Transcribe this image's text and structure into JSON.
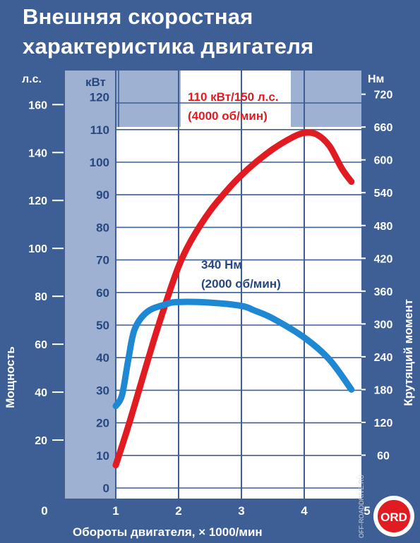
{
  "title": {
    "line1": "Внешняя скоростная",
    "line2": "характеристика двигателя"
  },
  "colors": {
    "background": "#3d5f95",
    "plot_area": "#ffffff",
    "shaded_band": "#9fb1d2",
    "power_curve": "#e11b22",
    "torque_curve": "#1e88d3",
    "label_dark": "#27477e"
  },
  "axes": {
    "left_hp_unit": "л.с.",
    "kw_unit": "кВт",
    "right_unit": "Нм",
    "left_title": "Мощность",
    "right_title": "Крутящий момент",
    "x_title": "Обороты двигателя, × 1000/мин"
  },
  "annotations": {
    "power_peak_line1": "110 кВт/150 л.с.",
    "power_peak_line2": "(4000 об/мин)",
    "torque_peak_line1": "340 Нм",
    "torque_peak_line2": "(2000 об/мин)"
  },
  "watermark": "OFF-ROADDRIVE.RU",
  "logo_text": "ORD",
  "chart_data": {
    "type": "line",
    "title": "Внешняя скоростная характеристика двигателя",
    "xlabel": "Обороты двигателя, × 1000/мин",
    "ylabel": "Мощность",
    "y2label": "Крутящий момент",
    "x_ticks": [
      "0",
      "1",
      "2",
      "3",
      "4",
      "5"
    ],
    "xlim": [
      0,
      5
    ],
    "hp_ticks": [
      "20",
      "40",
      "60",
      "80",
      "100",
      "120",
      "140",
      "160"
    ],
    "hp_lim": [
      0,
      160
    ],
    "kw_ticks": [
      "0",
      "10",
      "20",
      "30",
      "40",
      "50",
      "60",
      "70",
      "80",
      "90",
      "100",
      "110",
      "120"
    ],
    "kw_lim": [
      0,
      120
    ],
    "nm_ticks": [
      "60",
      "120",
      "180",
      "240",
      "300",
      "360",
      "420",
      "480",
      "540",
      "600",
      "660",
      "720"
    ],
    "nm_lim": [
      0,
      720
    ],
    "grid": true,
    "series": [
      {
        "name": "Мощность",
        "unit": "кВт",
        "color": "#e11b22",
        "x": [
          1.0,
          1.2,
          1.4,
          1.6,
          1.8,
          2.0,
          2.2,
          2.5,
          2.8,
          3.0,
          3.2,
          3.5,
          3.8,
          4.0,
          4.2,
          4.4,
          4.6,
          4.75
        ],
        "y": [
          7,
          19,
          32,
          45,
          57,
          68,
          76,
          85,
          92,
          96,
          99.5,
          104,
          107.5,
          109,
          108.5,
          105,
          98,
          94
        ]
      },
      {
        "name": "Крутящий момент",
        "unit": "Нм",
        "color": "#1e88d3",
        "x": [
          1.0,
          1.1,
          1.2,
          1.3,
          1.5,
          1.8,
          2.0,
          2.5,
          3.0,
          3.2,
          3.5,
          4.0,
          4.4,
          4.75
        ],
        "y": [
          150,
          170,
          235,
          290,
          322,
          336,
          340,
          339,
          333,
          325,
          310,
          275,
          235,
          180
        ]
      }
    ]
  }
}
